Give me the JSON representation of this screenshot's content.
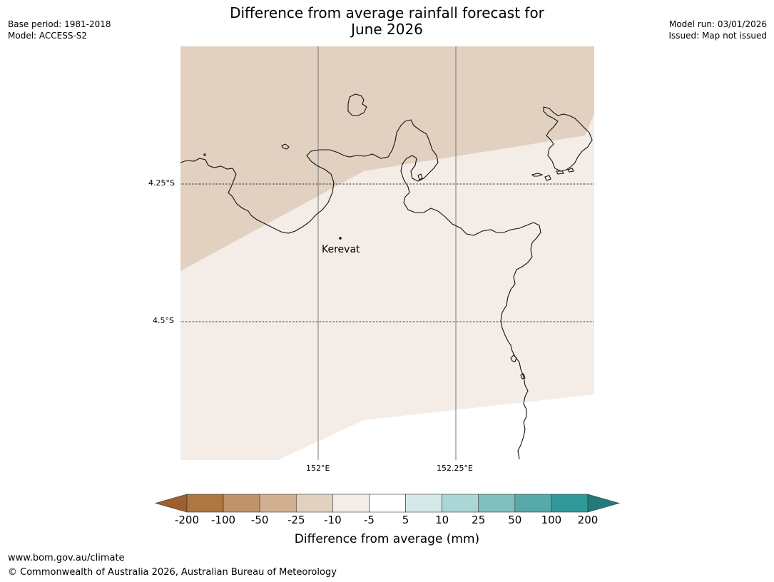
{
  "title": "Difference from average rainfall forecast for June 2026",
  "title_line1": "Difference from average rainfall forecast for",
  "title_line2": "June 2026",
  "meta_left": {
    "base_period": "Base period: 1981-2018",
    "model": "Model: ACCESS-S2"
  },
  "meta_right": {
    "model_run": "Model run: 03/01/2026",
    "issued": "Issued: Map not issued"
  },
  "map": {
    "lat_labels": [
      "4.25°S",
      "4.5°S"
    ],
    "lon_labels": [
      "152°E",
      "152.25°E"
    ],
    "place": {
      "name": "Kerevat"
    },
    "categories": [
      {
        "range": "-25 to -10",
        "color": "#e2d1c1"
      },
      {
        "range": "-10 to -5",
        "color": "#f4ece7"
      },
      {
        "range": "-5 to 5",
        "color": "#ffffff"
      }
    ]
  },
  "colorbar": {
    "title": "Difference from average (mm)",
    "labels": [
      "-200",
      "-100",
      "-50",
      "-25",
      "-10",
      "-5",
      "5",
      "10",
      "25",
      "50",
      "100",
      "200"
    ],
    "colors": [
      "#9c5f2d",
      "#ae7640",
      "#c0946a",
      "#d3b092",
      "#e2d1c1",
      "#f4ece7",
      "#ffffff",
      "#d5e9e9",
      "#acd6d5",
      "#81c0bd",
      "#58aaa9",
      "#31999a",
      "#247a78"
    ]
  },
  "footer": {
    "url": "www.bom.gov.au/climate",
    "copyright": "© Commonwealth of Australia 2026, Australian Bureau of Meteorology"
  }
}
